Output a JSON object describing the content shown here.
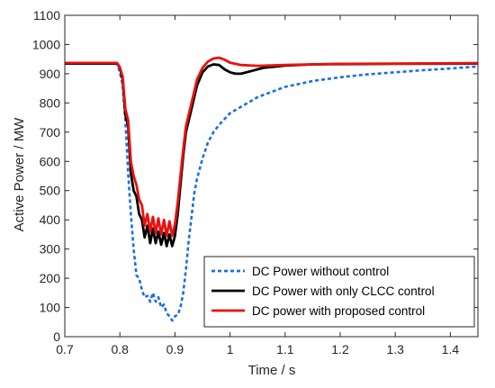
{
  "chart_data": {
    "type": "line",
    "xlabel": "Time / s",
    "ylabel": "Active Power / MW",
    "xlim": [
      0.7,
      1.45
    ],
    "ylim": [
      0,
      1100
    ],
    "xticks": [
      0.7,
      0.8,
      0.9,
      1,
      1.1,
      1.2,
      1.3,
      1.4
    ],
    "xtick_labels": [
      "0.7",
      "0.8",
      "0.9",
      "1",
      "1.1",
      "1.2",
      "1.3",
      "1.4"
    ],
    "yticks": [
      0,
      100,
      200,
      300,
      400,
      500,
      600,
      700,
      800,
      900,
      1000,
      1100
    ],
    "ytick_labels": [
      "0",
      "100",
      "200",
      "300",
      "400",
      "500",
      "600",
      "700",
      "800",
      "900",
      "1000",
      "1100"
    ],
    "grid": false,
    "legend_position": "bottom-right",
    "series": [
      {
        "name": "DC Power without control",
        "color": "#1a6fdf",
        "style": "dashed",
        "points": [
          [
            0.7,
            935
          ],
          [
            0.795,
            935
          ],
          [
            0.8,
            905
          ],
          [
            0.805,
            860
          ],
          [
            0.81,
            740
          ],
          [
            0.815,
            560
          ],
          [
            0.82,
            420
          ],
          [
            0.825,
            300
          ],
          [
            0.83,
            210
          ],
          [
            0.835,
            200
          ],
          [
            0.84,
            160
          ],
          [
            0.845,
            135
          ],
          [
            0.85,
            140
          ],
          [
            0.855,
            120
          ],
          [
            0.86,
            150
          ],
          [
            0.865,
            120
          ],
          [
            0.87,
            135
          ],
          [
            0.875,
            100
          ],
          [
            0.88,
            110
          ],
          [
            0.885,
            80
          ],
          [
            0.89,
            70
          ],
          [
            0.895,
            55
          ],
          [
            0.9,
            70
          ],
          [
            0.905,
            75
          ],
          [
            0.91,
            100
          ],
          [
            0.915,
            150
          ],
          [
            0.92,
            230
          ],
          [
            0.925,
            330
          ],
          [
            0.93,
            410
          ],
          [
            0.935,
            490
          ],
          [
            0.94,
            540
          ],
          [
            0.95,
            610
          ],
          [
            0.96,
            665
          ],
          [
            0.97,
            700
          ],
          [
            0.98,
            725
          ],
          [
            1.0,
            765
          ],
          [
            1.05,
            820
          ],
          [
            1.1,
            855
          ],
          [
            1.15,
            875
          ],
          [
            1.2,
            888
          ],
          [
            1.25,
            898
          ],
          [
            1.3,
            905
          ],
          [
            1.35,
            912
          ],
          [
            1.4,
            918
          ],
          [
            1.45,
            925
          ]
        ]
      },
      {
        "name": "DC Power with only CLCC control",
        "color": "#000000",
        "style": "solid",
        "points": [
          [
            0.7,
            935
          ],
          [
            0.795,
            935
          ],
          [
            0.8,
            920
          ],
          [
            0.805,
            880
          ],
          [
            0.81,
            760
          ],
          [
            0.815,
            720
          ],
          [
            0.82,
            560
          ],
          [
            0.825,
            500
          ],
          [
            0.83,
            480
          ],
          [
            0.835,
            420
          ],
          [
            0.84,
            400
          ],
          [
            0.845,
            340
          ],
          [
            0.85,
            380
          ],
          [
            0.855,
            320
          ],
          [
            0.86,
            370
          ],
          [
            0.865,
            320
          ],
          [
            0.87,
            360
          ],
          [
            0.875,
            315
          ],
          [
            0.88,
            355
          ],
          [
            0.885,
            310
          ],
          [
            0.89,
            350
          ],
          [
            0.895,
            310
          ],
          [
            0.9,
            345
          ],
          [
            0.905,
            420
          ],
          [
            0.91,
            520
          ],
          [
            0.915,
            620
          ],
          [
            0.92,
            700
          ],
          [
            0.93,
            780
          ],
          [
            0.94,
            860
          ],
          [
            0.95,
            905
          ],
          [
            0.96,
            925
          ],
          [
            0.97,
            932
          ],
          [
            0.98,
            930
          ],
          [
            0.99,
            915
          ],
          [
            1.0,
            905
          ],
          [
            1.01,
            900
          ],
          [
            1.02,
            900
          ],
          [
            1.04,
            910
          ],
          [
            1.06,
            920
          ],
          [
            1.1,
            928
          ],
          [
            1.15,
            932
          ],
          [
            1.2,
            933
          ],
          [
            1.3,
            934
          ],
          [
            1.45,
            935
          ]
        ]
      },
      {
        "name": "DC power with proposed control",
        "color": "#e8110f",
        "style": "solid",
        "points": [
          [
            0.7,
            937
          ],
          [
            0.795,
            937
          ],
          [
            0.8,
            922
          ],
          [
            0.805,
            890
          ],
          [
            0.81,
            780
          ],
          [
            0.815,
            740
          ],
          [
            0.82,
            600
          ],
          [
            0.825,
            550
          ],
          [
            0.83,
            520
          ],
          [
            0.835,
            470
          ],
          [
            0.84,
            450
          ],
          [
            0.845,
            380
          ],
          [
            0.85,
            420
          ],
          [
            0.855,
            360
          ],
          [
            0.86,
            410
          ],
          [
            0.865,
            355
          ],
          [
            0.87,
            405
          ],
          [
            0.875,
            350
          ],
          [
            0.88,
            400
          ],
          [
            0.885,
            345
          ],
          [
            0.89,
            395
          ],
          [
            0.895,
            345
          ],
          [
            0.9,
            385
          ],
          [
            0.905,
            460
          ],
          [
            0.91,
            550
          ],
          [
            0.915,
            640
          ],
          [
            0.92,
            720
          ],
          [
            0.93,
            800
          ],
          [
            0.94,
            880
          ],
          [
            0.95,
            920
          ],
          [
            0.96,
            942
          ],
          [
            0.97,
            952
          ],
          [
            0.98,
            955
          ],
          [
            0.99,
            948
          ],
          [
            1.0,
            938
          ],
          [
            1.02,
            930
          ],
          [
            1.05,
            927
          ],
          [
            1.1,
            930
          ],
          [
            1.15,
            932
          ],
          [
            1.2,
            934
          ],
          [
            1.3,
            935
          ],
          [
            1.45,
            936
          ]
        ]
      }
    ]
  }
}
